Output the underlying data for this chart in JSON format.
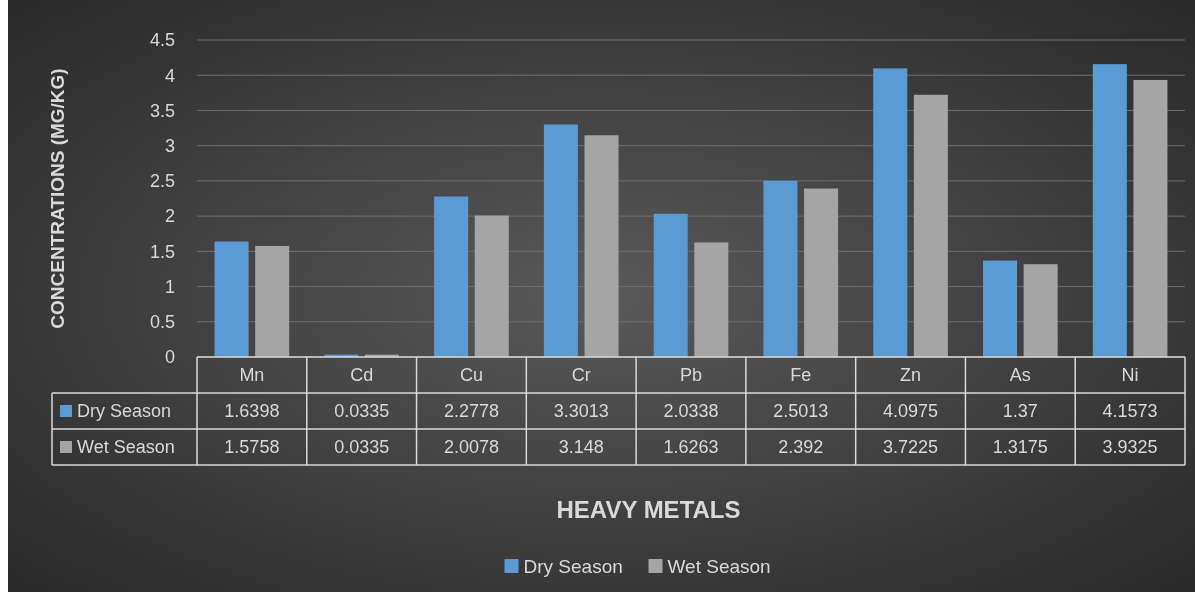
{
  "chart_data": {
    "type": "bar",
    "xlabel": "HEAVY METALS",
    "ylabel": "CONCENTRATIONS  (MG/KG)",
    "categories": [
      "Mn",
      "Cd",
      "Cu",
      "Cr",
      "Pb",
      "Fe",
      "Zn",
      "As",
      "Ni"
    ],
    "series": [
      {
        "name": "Dry Season",
        "color": "#5b9bd5",
        "values": [
          1.6398,
          0.0335,
          2.2778,
          3.3013,
          2.0338,
          2.5013,
          4.0975,
          1.37,
          4.1573
        ]
      },
      {
        "name": "Wet Season",
        "color": "#a5a5a5",
        "values": [
          1.5758,
          0.0335,
          2.0078,
          3.148,
          1.6263,
          2.392,
          3.7225,
          1.3175,
          3.9325
        ]
      }
    ],
    "ylim": [
      0,
      4.5
    ],
    "yticks": [
      0,
      0.5,
      1,
      1.5,
      2,
      2.5,
      3,
      3.5,
      4,
      4.5
    ],
    "grid": "y",
    "legend": "bottom",
    "data_labels": true
  }
}
